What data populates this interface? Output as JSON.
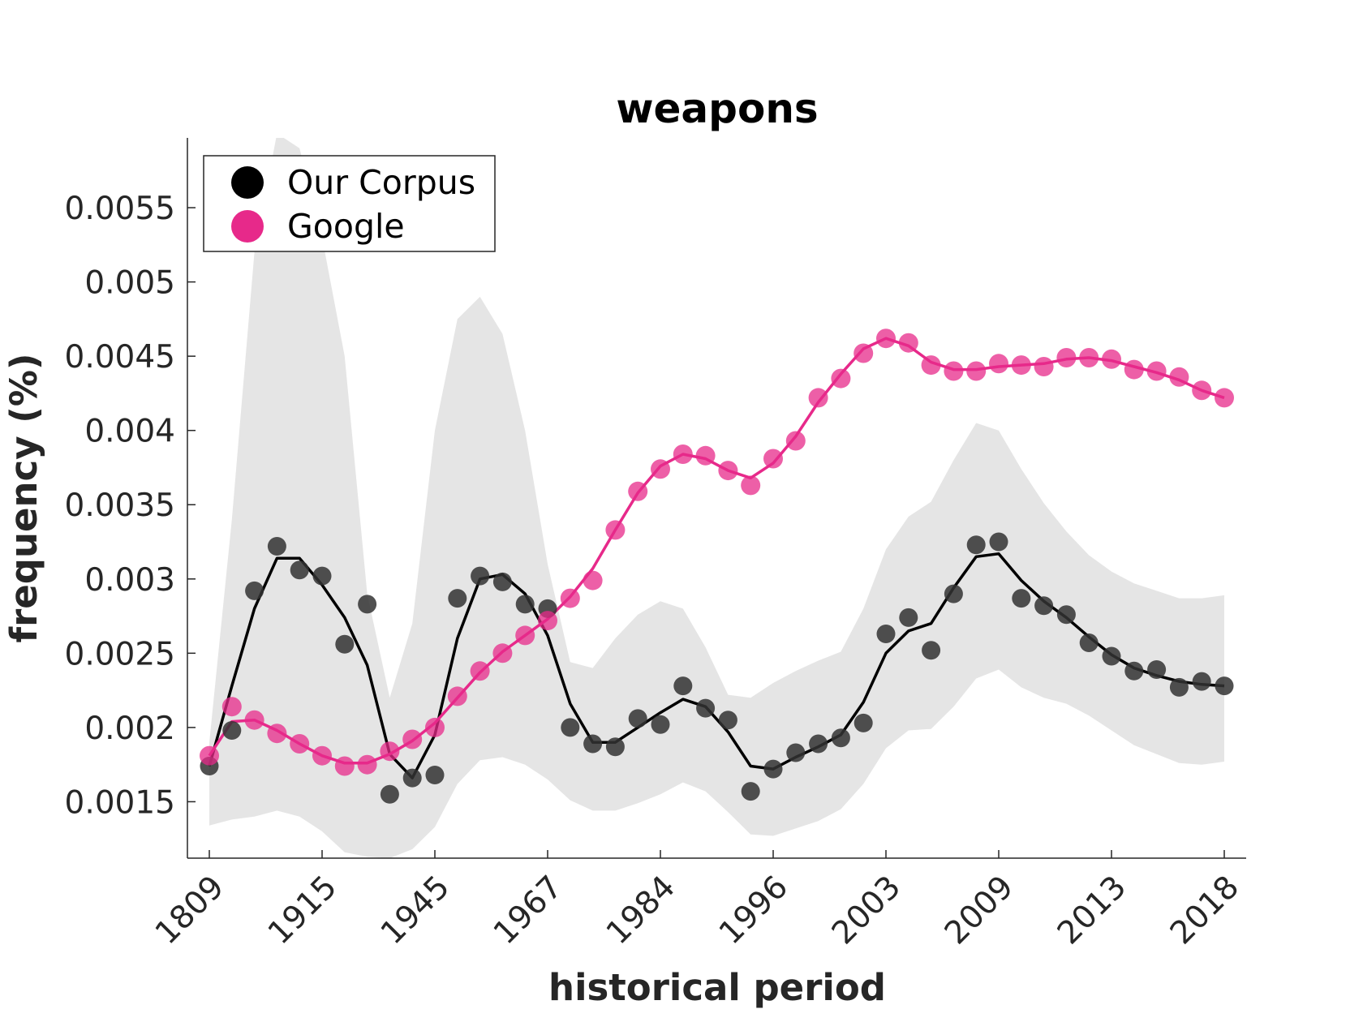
{
  "chart_data": {
    "type": "line",
    "title": "weapons",
    "xlabel": "historical period",
    "ylabel": "frequency (%)",
    "categories": [
      "1809",
      "",
      "",
      "",
      "",
      "1915",
      "",
      "",
      "",
      "",
      "1945",
      "",
      "",
      "",
      "",
      "1967",
      "",
      "",
      "",
      "",
      "1984",
      "",
      "",
      "",
      "",
      "1996",
      "",
      "",
      "",
      "",
      "2003",
      "",
      "",
      "",
      "",
      "2009",
      "",
      "",
      "",
      "",
      "2013",
      "",
      "",
      "",
      "",
      "2018"
    ],
    "tick_labels": [
      "1809",
      "1915",
      "1945",
      "1967",
      "1984",
      "1996",
      "2003",
      "2009",
      "2013",
      "2018"
    ],
    "yticks": [
      0.0015,
      0.002,
      0.0025,
      0.003,
      0.0035,
      0.004,
      0.0045,
      0.005,
      0.0055
    ],
    "ytick_labels": [
      "0.0015",
      "0.002",
      "0.0025",
      "0.003",
      "0.0035",
      "0.004",
      "0.0045",
      "0.005",
      "0.0055"
    ],
    "ylim": [
      0.00112,
      0.00597
    ],
    "grid": false,
    "legend_position": "top-left",
    "series": [
      {
        "name": "Our Corpus",
        "color": "#000000",
        "points": [
          0.00174,
          0.00198,
          0.00292,
          0.00322,
          0.00306,
          0.00302,
          0.00256,
          0.00283,
          0.00155,
          0.00166,
          0.00168,
          0.00287,
          0.00302,
          0.00298,
          0.00283,
          0.0028,
          0.002,
          0.00189,
          0.00187,
          0.00206,
          0.00202,
          0.00228,
          0.00213,
          0.00205,
          0.00157,
          0.00172,
          0.00183,
          0.00189,
          0.00193,
          0.00203,
          0.00263,
          0.00274,
          0.00252,
          0.0029,
          0.00323,
          0.00325,
          0.00287,
          0.00282,
          0.00276,
          0.00257,
          0.00248,
          0.00238,
          0.00239,
          0.00227,
          0.00231,
          0.00228
        ],
        "smooth": [
          0.00174,
          0.00228,
          0.0028,
          0.00314,
          0.00314,
          0.00296,
          0.00274,
          0.00242,
          0.00182,
          0.00166,
          0.00195,
          0.0026,
          0.003,
          0.00303,
          0.0029,
          0.00262,
          0.00216,
          0.0019,
          0.0019,
          0.002,
          0.0021,
          0.00219,
          0.00214,
          0.00197,
          0.00174,
          0.00172,
          0.0018,
          0.00187,
          0.00195,
          0.00217,
          0.0025,
          0.00265,
          0.0027,
          0.00294,
          0.00315,
          0.00317,
          0.00299,
          0.00285,
          0.00274,
          0.00261,
          0.00249,
          0.0024,
          0.00235,
          0.00231,
          0.00229,
          0.00228
        ],
        "band_upper": [
          0.0019,
          0.0034,
          0.0052,
          0.006,
          0.0059,
          0.0053,
          0.0045,
          0.0029,
          0.0022,
          0.0027,
          0.004,
          0.00475,
          0.0049,
          0.00465,
          0.004,
          0.0031,
          0.00244,
          0.0024,
          0.0026,
          0.00276,
          0.00285,
          0.0028,
          0.00254,
          0.00222,
          0.0022,
          0.0023,
          0.00238,
          0.00245,
          0.00251,
          0.0028,
          0.0032,
          0.00342,
          0.00352,
          0.0038,
          0.00405,
          0.004,
          0.00374,
          0.00351,
          0.00332,
          0.00316,
          0.00305,
          0.00297,
          0.00292,
          0.00287,
          0.00287,
          0.00289
        ],
        "band_lower": [
          0.00134,
          0.00138,
          0.0014,
          0.00144,
          0.0014,
          0.0013,
          0.00116,
          0.00113,
          0.00112,
          0.00118,
          0.00133,
          0.00162,
          0.00178,
          0.0018,
          0.00175,
          0.00165,
          0.00151,
          0.00144,
          0.00144,
          0.00149,
          0.00155,
          0.00163,
          0.00157,
          0.00143,
          0.00128,
          0.00127,
          0.00132,
          0.00137,
          0.00145,
          0.00162,
          0.00186,
          0.00198,
          0.00199,
          0.00214,
          0.00233,
          0.00239,
          0.00227,
          0.0022,
          0.00216,
          0.00208,
          0.00198,
          0.00188,
          0.00182,
          0.00176,
          0.00175,
          0.00177
        ]
      },
      {
        "name": "Google",
        "color": "#e7298a",
        "points": [
          0.00181,
          0.00214,
          0.00205,
          0.00196,
          0.00189,
          0.00181,
          0.00174,
          0.00175,
          0.00184,
          0.00192,
          0.002,
          0.00221,
          0.00238,
          0.0025,
          0.00262,
          0.00272,
          0.00287,
          0.00299,
          0.00333,
          0.00359,
          0.00374,
          0.00384,
          0.00383,
          0.00373,
          0.00363,
          0.00381,
          0.00393,
          0.00422,
          0.00435,
          0.00452,
          0.00462,
          0.00459,
          0.00444,
          0.0044,
          0.0044,
          0.00445,
          0.00444,
          0.00443,
          0.00449,
          0.00449,
          0.00448,
          0.00441,
          0.0044,
          0.00436,
          0.00427,
          0.00422
        ],
        "smooth": [
          0.00181,
          0.00204,
          0.00205,
          0.00198,
          0.00189,
          0.00181,
          0.00176,
          0.00176,
          0.00182,
          0.00191,
          0.00203,
          0.0022,
          0.00237,
          0.00251,
          0.00262,
          0.00273,
          0.00288,
          0.00307,
          0.00333,
          0.00358,
          0.00376,
          0.00384,
          0.00381,
          0.00373,
          0.00368,
          0.00378,
          0.00396,
          0.00419,
          0.00438,
          0.00455,
          0.00462,
          0.00457,
          0.00446,
          0.00441,
          0.00441,
          0.00443,
          0.00444,
          0.00445,
          0.00448,
          0.00449,
          0.00447,
          0.00443,
          0.00439,
          0.00434,
          0.00427,
          0.00422
        ]
      }
    ]
  }
}
